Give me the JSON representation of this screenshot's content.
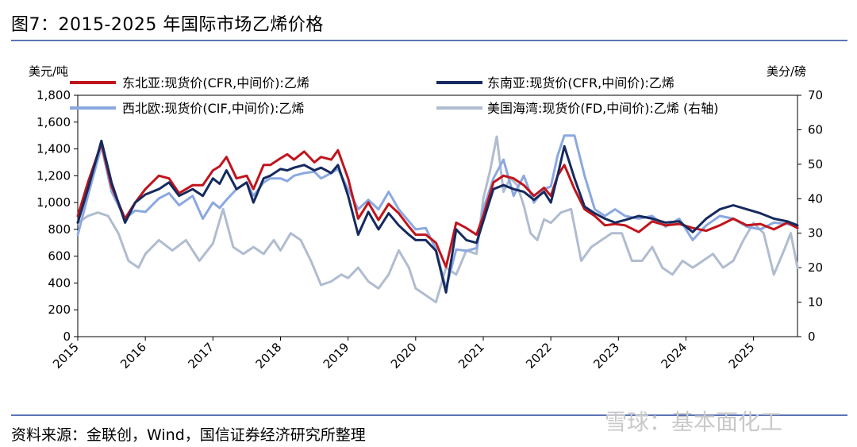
{
  "title": "图7：2015-2025 年国际市场乙烯价格",
  "source": "资料来源：金联创，Wind，国信证券经济研究所整理",
  "watermark": "雪球：基本面化工",
  "chart_data": {
    "type": "line",
    "left_axis": {
      "label": "美元/吨",
      "range": [
        0,
        1800
      ],
      "ticks": [
        "0",
        "200",
        "400",
        "600",
        "800",
        "1,000",
        "1,200",
        "1,400",
        "1,600",
        "1,800"
      ]
    },
    "right_axis": {
      "label": "美分/磅",
      "range": [
        0,
        70
      ],
      "ticks": [
        "0",
        "10",
        "20",
        "30",
        "40",
        "50",
        "60",
        "70"
      ]
    },
    "x_range": [
      2015.0,
      2025.65
    ],
    "x_ticks": [
      "2015",
      "2016",
      "2017",
      "2018",
      "2019",
      "2020",
      "2021",
      "2022",
      "2023",
      "2024",
      "2025"
    ],
    "series": [
      {
        "name": "东北亚:现货价(CFR,中间价):乙烯",
        "color": "#c0141c",
        "axis": "left",
        "x": [
          2015.0,
          2015.15,
          2015.35,
          2015.5,
          2015.7,
          2015.85,
          2016.0,
          2016.2,
          2016.35,
          2016.5,
          2016.7,
          2016.85,
          2017.0,
          2017.1,
          2017.2,
          2017.35,
          2017.5,
          2017.6,
          2017.75,
          2017.85,
          2018.0,
          2018.1,
          2018.2,
          2018.35,
          2018.5,
          2018.6,
          2018.75,
          2018.85,
          2019.0,
          2019.15,
          2019.3,
          2019.45,
          2019.6,
          2019.75,
          2019.9,
          2020.0,
          2020.15,
          2020.3,
          2020.45,
          2020.6,
          2020.75,
          2020.9,
          2021.0,
          2021.15,
          2021.3,
          2021.45,
          2021.6,
          2021.75,
          2021.9,
          2022.0,
          2022.1,
          2022.2,
          2022.35,
          2022.5,
          2022.65,
          2022.8,
          2022.95,
          2023.1,
          2023.3,
          2023.5,
          2023.7,
          2023.9,
          2024.1,
          2024.3,
          2024.5,
          2024.7,
          2024.9,
          2025.1,
          2025.3,
          2025.5,
          2025.65
        ],
        "values": [
          900,
          1150,
          1440,
          1120,
          880,
          1000,
          1100,
          1200,
          1180,
          1070,
          1130,
          1130,
          1240,
          1270,
          1340,
          1180,
          1200,
          1100,
          1280,
          1280,
          1330,
          1360,
          1320,
          1380,
          1300,
          1340,
          1320,
          1390,
          1180,
          880,
          1000,
          870,
          990,
          920,
          820,
          760,
          760,
          700,
          520,
          850,
          810,
          760,
          900,
          1150,
          1200,
          1180,
          1130,
          1050,
          1110,
          1050,
          1200,
          1280,
          1100,
          950,
          900,
          830,
          840,
          830,
          780,
          860,
          830,
          840,
          810,
          790,
          830,
          880,
          830,
          840,
          800,
          850,
          810
        ]
      },
      {
        "name": "东南亚:现货价(CFR,中间价):乙烯",
        "color": "#152a5e",
        "axis": "left",
        "x": [
          2015.0,
          2015.15,
          2015.35,
          2015.5,
          2015.7,
          2015.85,
          2016.0,
          2016.2,
          2016.35,
          2016.5,
          2016.7,
          2016.85,
          2017.0,
          2017.1,
          2017.2,
          2017.35,
          2017.5,
          2017.6,
          2017.75,
          2017.85,
          2018.0,
          2018.1,
          2018.2,
          2018.35,
          2018.5,
          2018.6,
          2018.75,
          2018.85,
          2019.0,
          2019.15,
          2019.3,
          2019.45,
          2019.6,
          2019.75,
          2019.9,
          2020.0,
          2020.15,
          2020.3,
          2020.45,
          2020.6,
          2020.75,
          2020.9,
          2021.0,
          2021.15,
          2021.3,
          2021.45,
          2021.6,
          2021.75,
          2021.9,
          2022.0,
          2022.1,
          2022.2,
          2022.35,
          2022.5,
          2022.65,
          2022.8,
          2022.95,
          2023.1,
          2023.3,
          2023.5,
          2023.7,
          2023.9,
          2024.1,
          2024.3,
          2024.5,
          2024.7,
          2024.9,
          2025.1,
          2025.3,
          2025.5,
          2025.65
        ],
        "values": [
          850,
          1100,
          1460,
          1150,
          850,
          1000,
          1060,
          1100,
          1150,
          1050,
          1100,
          1050,
          1180,
          1140,
          1240,
          1100,
          1150,
          1000,
          1180,
          1200,
          1250,
          1240,
          1260,
          1280,
          1240,
          1260,
          1220,
          1280,
          1050,
          760,
          930,
          800,
          920,
          830,
          760,
          720,
          720,
          640,
          330,
          800,
          720,
          700,
          860,
          1100,
          1130,
          1100,
          1080,
          1020,
          1080,
          1000,
          1200,
          1420,
          1180,
          970,
          920,
          880,
          850,
          870,
          900,
          880,
          850,
          860,
          780,
          880,
          950,
          980,
          950,
          920,
          880,
          860,
          830
        ]
      },
      {
        "name": "西北欧:现货价(CIF,中间价):乙烯",
        "color": "#8ba8e0",
        "axis": "left",
        "x": [
          2015.0,
          2015.15,
          2015.35,
          2015.5,
          2015.7,
          2015.85,
          2016.0,
          2016.2,
          2016.35,
          2016.5,
          2016.7,
          2016.85,
          2017.0,
          2017.1,
          2017.2,
          2017.35,
          2017.5,
          2017.6,
          2017.75,
          2017.85,
          2018.0,
          2018.1,
          2018.2,
          2018.35,
          2018.5,
          2018.6,
          2018.75,
          2018.85,
          2019.0,
          2019.15,
          2019.3,
          2019.45,
          2019.6,
          2019.75,
          2019.9,
          2020.0,
          2020.15,
          2020.3,
          2020.45,
          2020.6,
          2020.75,
          2020.9,
          2021.0,
          2021.15,
          2021.3,
          2021.45,
          2021.6,
          2021.75,
          2021.9,
          2022.0,
          2022.1,
          2022.2,
          2022.35,
          2022.5,
          2022.65,
          2022.8,
          2022.95,
          2023.1,
          2023.3,
          2023.5,
          2023.7,
          2023.9,
          2024.1,
          2024.3,
          2024.5,
          2024.7,
          2024.9,
          2025.1,
          2025.3,
          2025.5,
          2025.65
        ],
        "values": [
          760,
          1050,
          1420,
          1080,
          880,
          940,
          930,
          1030,
          1070,
          980,
          1050,
          880,
          1000,
          960,
          1020,
          1100,
          1150,
          1050,
          1150,
          1180,
          1180,
          1160,
          1200,
          1220,
          1230,
          1180,
          1220,
          1250,
          1100,
          950,
          1020,
          950,
          1080,
          950,
          860,
          800,
          810,
          650,
          360,
          650,
          640,
          660,
          950,
          1180,
          1320,
          1050,
          1200,
          1000,
          1100,
          1120,
          1350,
          1500,
          1500,
          1200,
          950,
          900,
          950,
          900,
          880,
          900,
          820,
          880,
          720,
          830,
          900,
          880,
          820,
          800,
          850,
          840,
          820
        ]
      },
      {
        "name": "美国海湾:现货价(FD,中间价):乙烯 (右轴)",
        "color": "#b0bccf",
        "axis": "right",
        "x": [
          2015.0,
          2015.15,
          2015.3,
          2015.45,
          2015.6,
          2015.75,
          2015.9,
          2016.0,
          2016.2,
          2016.4,
          2016.6,
          2016.8,
          2017.0,
          2017.15,
          2017.3,
          2017.45,
          2017.6,
          2017.75,
          2017.9,
          2018.0,
          2018.15,
          2018.3,
          2018.45,
          2018.6,
          2018.75,
          2018.9,
          2019.0,
          2019.15,
          2019.3,
          2019.45,
          2019.6,
          2019.75,
          2019.9,
          2020.0,
          2020.15,
          2020.3,
          2020.45,
          2020.6,
          2020.75,
          2020.9,
          2021.0,
          2021.1,
          2021.2,
          2021.3,
          2021.4,
          2021.5,
          2021.6,
          2021.7,
          2021.8,
          2021.9,
          2022.0,
          2022.15,
          2022.3,
          2022.45,
          2022.6,
          2022.75,
          2022.9,
          2023.05,
          2023.2,
          2023.35,
          2023.5,
          2023.65,
          2023.8,
          2023.95,
          2024.1,
          2024.25,
          2024.4,
          2024.55,
          2024.7,
          2024.85,
          2025.0,
          2025.15,
          2025.3,
          2025.45,
          2025.55,
          2025.65
        ],
        "values": [
          33,
          35,
          36,
          35,
          30,
          22,
          20,
          24,
          28,
          25,
          28,
          22,
          27,
          37,
          26,
          24,
          26,
          24,
          28,
          25,
          30,
          28,
          22,
          15,
          16,
          18,
          17,
          20,
          16,
          14,
          18,
          25,
          20,
          14,
          12,
          10,
          20,
          18,
          25,
          24,
          40,
          48,
          58,
          42,
          46,
          44,
          38,
          30,
          28,
          34,
          33,
          36,
          37,
          22,
          26,
          28,
          30,
          30,
          22,
          22,
          26,
          20,
          18,
          22,
          20,
          22,
          24,
          20,
          22,
          28,
          33,
          30,
          18,
          25,
          30,
          20
        ]
      }
    ]
  }
}
